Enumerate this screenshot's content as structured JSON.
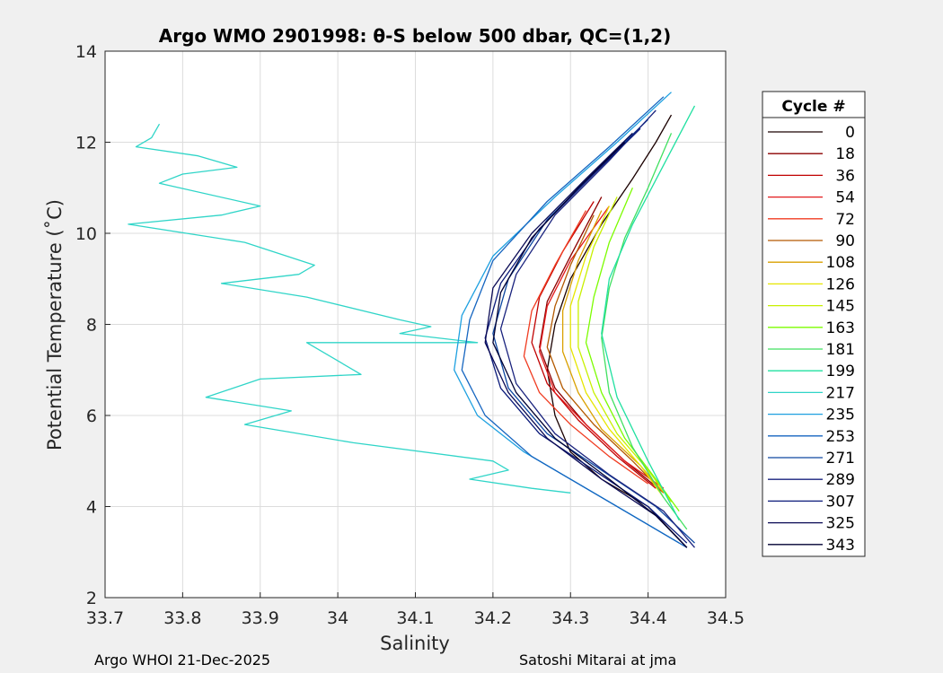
{
  "chart_data": {
    "type": "line",
    "title": "Argo WMO 2901998: θ-S below 500 dbar,  QC=(1,2)",
    "xlabel": "Salinity",
    "ylabel": "Potential Temperature (˚C)",
    "xlim": [
      33.7,
      34.5
    ],
    "ylim": [
      2,
      14
    ],
    "xticks": [
      "33.7",
      "33.8",
      "33.9",
      "34",
      "34.1",
      "34.2",
      "34.3",
      "34.4",
      "34.5"
    ],
    "yticks": [
      "2",
      "4",
      "6",
      "8",
      "10",
      "12",
      "14"
    ],
    "grid": true,
    "legend": {
      "title": "Cycle #",
      "position": "right-outside",
      "entries": [
        {
          "label": "0",
          "color": "#1a0000"
        },
        {
          "label": "18",
          "color": "#8b0000"
        },
        {
          "label": "36",
          "color": "#c00000"
        },
        {
          "label": "54",
          "color": "#e31a1c"
        },
        {
          "label": "72",
          "color": "#f03b20"
        },
        {
          "label": "90",
          "color": "#b35900"
        },
        {
          "label": "108",
          "color": "#d9a000"
        },
        {
          "label": "126",
          "color": "#e6e600"
        },
        {
          "label": "145",
          "color": "#c8f000"
        },
        {
          "label": "163",
          "color": "#7cfc00"
        },
        {
          "label": "181",
          "color": "#40e060"
        },
        {
          "label": "199",
          "color": "#20e0a0"
        },
        {
          "label": "217",
          "color": "#30d5c8"
        },
        {
          "label": "235",
          "color": "#1ea0e0"
        },
        {
          "label": "253",
          "color": "#1565c0"
        },
        {
          "label": "271",
          "color": "#0d47a1"
        },
        {
          "label": "289",
          "color": "#1a237e"
        },
        {
          "label": "307",
          "color": "#0a1a7a"
        },
        {
          "label": "325",
          "color": "#0a0a55"
        },
        {
          "label": "343",
          "color": "#000033"
        }
      ]
    },
    "series": [
      {
        "name": "0",
        "color": "#1a0000",
        "s": [
          34.43,
          34.41,
          34.38,
          34.34,
          34.3,
          34.28,
          34.27,
          34.28,
          34.3,
          34.34,
          34.4,
          34.45
        ],
        "t": [
          12.6,
          12.0,
          11.2,
          10.2,
          9.0,
          8.0,
          7.0,
          6.0,
          5.2,
          4.6,
          4.0,
          3.1
        ]
      },
      {
        "name": "18",
        "color": "#8b0000",
        "s": [
          34.34,
          34.3,
          34.27,
          34.26,
          34.28,
          34.32,
          34.37,
          34.42
        ],
        "t": [
          10.8,
          9.5,
          8.5,
          7.5,
          6.6,
          5.8,
          5.0,
          4.3
        ]
      },
      {
        "name": "36",
        "color": "#c00000",
        "s": [
          34.33,
          34.29,
          34.26,
          34.25,
          34.27,
          34.31,
          34.36,
          34.41
        ],
        "t": [
          10.7,
          9.6,
          8.6,
          7.6,
          6.7,
          5.9,
          5.1,
          4.4
        ]
      },
      {
        "name": "54",
        "color": "#e31a1c",
        "s": [
          34.35,
          34.3,
          34.27,
          34.26,
          34.28,
          34.32,
          34.37,
          34.42
        ],
        "t": [
          10.6,
          9.4,
          8.4,
          7.4,
          6.5,
          5.8,
          5.0,
          4.4
        ]
      },
      {
        "name": "72",
        "color": "#f03b20",
        "s": [
          34.32,
          34.28,
          34.25,
          34.24,
          34.26,
          34.3,
          34.35,
          34.4
        ],
        "t": [
          10.5,
          9.3,
          8.3,
          7.3,
          6.5,
          5.8,
          5.1,
          4.5
        ]
      },
      {
        "name": "90",
        "color": "#b35900",
        "s": [
          34.33,
          34.3,
          34.28,
          34.27,
          34.29,
          34.33,
          34.38,
          34.42
        ],
        "t": [
          10.4,
          9.3,
          8.4,
          7.5,
          6.6,
          5.8,
          5.0,
          4.3
        ]
      },
      {
        "name": "108",
        "color": "#d9a000",
        "s": [
          34.34,
          34.31,
          34.29,
          34.29,
          34.31,
          34.34,
          34.39,
          34.42
        ],
        "t": [
          10.5,
          9.4,
          8.3,
          7.4,
          6.5,
          5.7,
          4.9,
          4.3
        ]
      },
      {
        "name": "126",
        "color": "#e6e600",
        "s": [
          34.35,
          34.32,
          34.3,
          34.3,
          34.32,
          34.35,
          34.39,
          34.42
        ],
        "t": [
          10.6,
          9.5,
          8.4,
          7.5,
          6.5,
          5.7,
          4.9,
          4.2
        ]
      },
      {
        "name": "145",
        "color": "#c8f000",
        "s": [
          34.36,
          34.33,
          34.31,
          34.31,
          34.33,
          34.36,
          34.4,
          34.43
        ],
        "t": [
          10.8,
          9.7,
          8.5,
          7.5,
          6.5,
          5.6,
          4.8,
          4.1
        ]
      },
      {
        "name": "163",
        "color": "#7cfc00",
        "s": [
          34.38,
          34.35,
          34.33,
          34.32,
          34.34,
          34.37,
          34.41,
          34.44
        ],
        "t": [
          11.0,
          9.8,
          8.6,
          7.6,
          6.5,
          5.5,
          4.6,
          3.9
        ]
      },
      {
        "name": "181",
        "color": "#40e060",
        "s": [
          34.43,
          34.4,
          34.37,
          34.35,
          34.34,
          34.35,
          34.38,
          34.42,
          34.45
        ],
        "t": [
          12.2,
          11.0,
          9.9,
          8.8,
          7.7,
          6.5,
          5.3,
          4.2,
          3.5
        ]
      },
      {
        "name": "199",
        "color": "#20e0a0",
        "s": [
          34.46,
          34.42,
          34.38,
          34.35,
          34.34,
          34.36,
          34.4,
          34.44
        ],
        "t": [
          12.8,
          11.5,
          10.2,
          9.0,
          7.8,
          6.4,
          5.0,
          3.7
        ]
      },
      {
        "name": "217",
        "color": "#30d5c8",
        "s": [
          33.77,
          33.76,
          33.74,
          33.82,
          33.87,
          33.8,
          33.77,
          33.9,
          33.85,
          33.73,
          33.88,
          33.97,
          33.95,
          33.85,
          33.96,
          34.08,
          34.12,
          34.08,
          34.18,
          34.12,
          33.96,
          34.03,
          33.9,
          33.83,
          33.94,
          33.88,
          34.02,
          34.2,
          34.22,
          34.17,
          34.25,
          34.3
        ],
        "t": [
          12.4,
          12.1,
          11.9,
          11.7,
          11.45,
          11.3,
          11.1,
          10.6,
          10.4,
          10.2,
          9.8,
          9.3,
          9.1,
          8.9,
          8.6,
          8.1,
          7.95,
          7.8,
          7.6,
          7.6,
          7.6,
          6.9,
          6.8,
          6.4,
          6.1,
          5.8,
          5.4,
          5.0,
          4.8,
          4.6,
          4.4,
          4.3
        ]
      },
      {
        "name": "235",
        "color": "#1ea0e0",
        "s": [
          34.43,
          34.36,
          34.28,
          34.2,
          34.16,
          34.15,
          34.18,
          34.24,
          34.31,
          34.38,
          34.44
        ],
        "t": [
          13.1,
          12.0,
          10.8,
          9.5,
          8.2,
          7.0,
          6.0,
          5.2,
          4.5,
          3.8,
          3.2
        ]
      },
      {
        "name": "253",
        "color": "#1565c0",
        "s": [
          34.42,
          34.35,
          34.27,
          34.2,
          34.17,
          34.16,
          34.19,
          34.25,
          34.32,
          34.39,
          34.45
        ],
        "t": [
          13.0,
          11.9,
          10.7,
          9.4,
          8.1,
          7.0,
          6.0,
          5.1,
          4.4,
          3.7,
          3.1
        ]
      },
      {
        "name": "271",
        "color": "#0d47a1",
        "s": [
          34.4,
          34.34,
          34.27,
          34.22,
          34.2,
          34.22,
          34.27,
          34.34,
          34.41,
          34.46
        ],
        "t": [
          12.5,
          11.5,
          10.3,
          9.0,
          7.8,
          6.6,
          5.6,
          4.8,
          4.0,
          3.2
        ]
      },
      {
        "name": "289",
        "color": "#1a237e",
        "s": [
          34.41,
          34.35,
          34.28,
          34.23,
          34.21,
          34.23,
          34.28,
          34.35,
          34.42,
          34.46
        ],
        "t": [
          12.7,
          11.6,
          10.4,
          9.1,
          7.9,
          6.7,
          5.6,
          4.7,
          3.9,
          3.1
        ]
      },
      {
        "name": "307",
        "color": "#0a1a7a",
        "s": [
          34.39,
          34.33,
          34.26,
          34.21,
          34.19,
          34.21,
          34.26,
          34.33,
          34.4,
          34.45
        ],
        "t": [
          12.3,
          11.3,
          10.1,
          8.9,
          7.7,
          6.6,
          5.6,
          4.8,
          4.0,
          3.2
        ]
      },
      {
        "name": "325",
        "color": "#0a0a55",
        "s": [
          34.38,
          34.32,
          34.25,
          34.2,
          34.19,
          34.22,
          34.27,
          34.34,
          34.41,
          34.45
        ],
        "t": [
          12.2,
          11.2,
          10.0,
          8.8,
          7.6,
          6.5,
          5.5,
          4.6,
          3.8,
          3.1
        ]
      },
      {
        "name": "343",
        "color": "#000033",
        "s": [
          34.37,
          34.31,
          34.25,
          34.21,
          34.2,
          34.23,
          34.28,
          34.35,
          34.41,
          34.45
        ],
        "t": [
          12.0,
          11.0,
          9.9,
          8.7,
          7.6,
          6.5,
          5.5,
          4.6,
          3.8,
          3.1
        ]
      }
    ]
  },
  "footer": {
    "left": "Argo WHOI 21-Dec-2025",
    "right": "Satoshi Mitarai at jma"
  }
}
